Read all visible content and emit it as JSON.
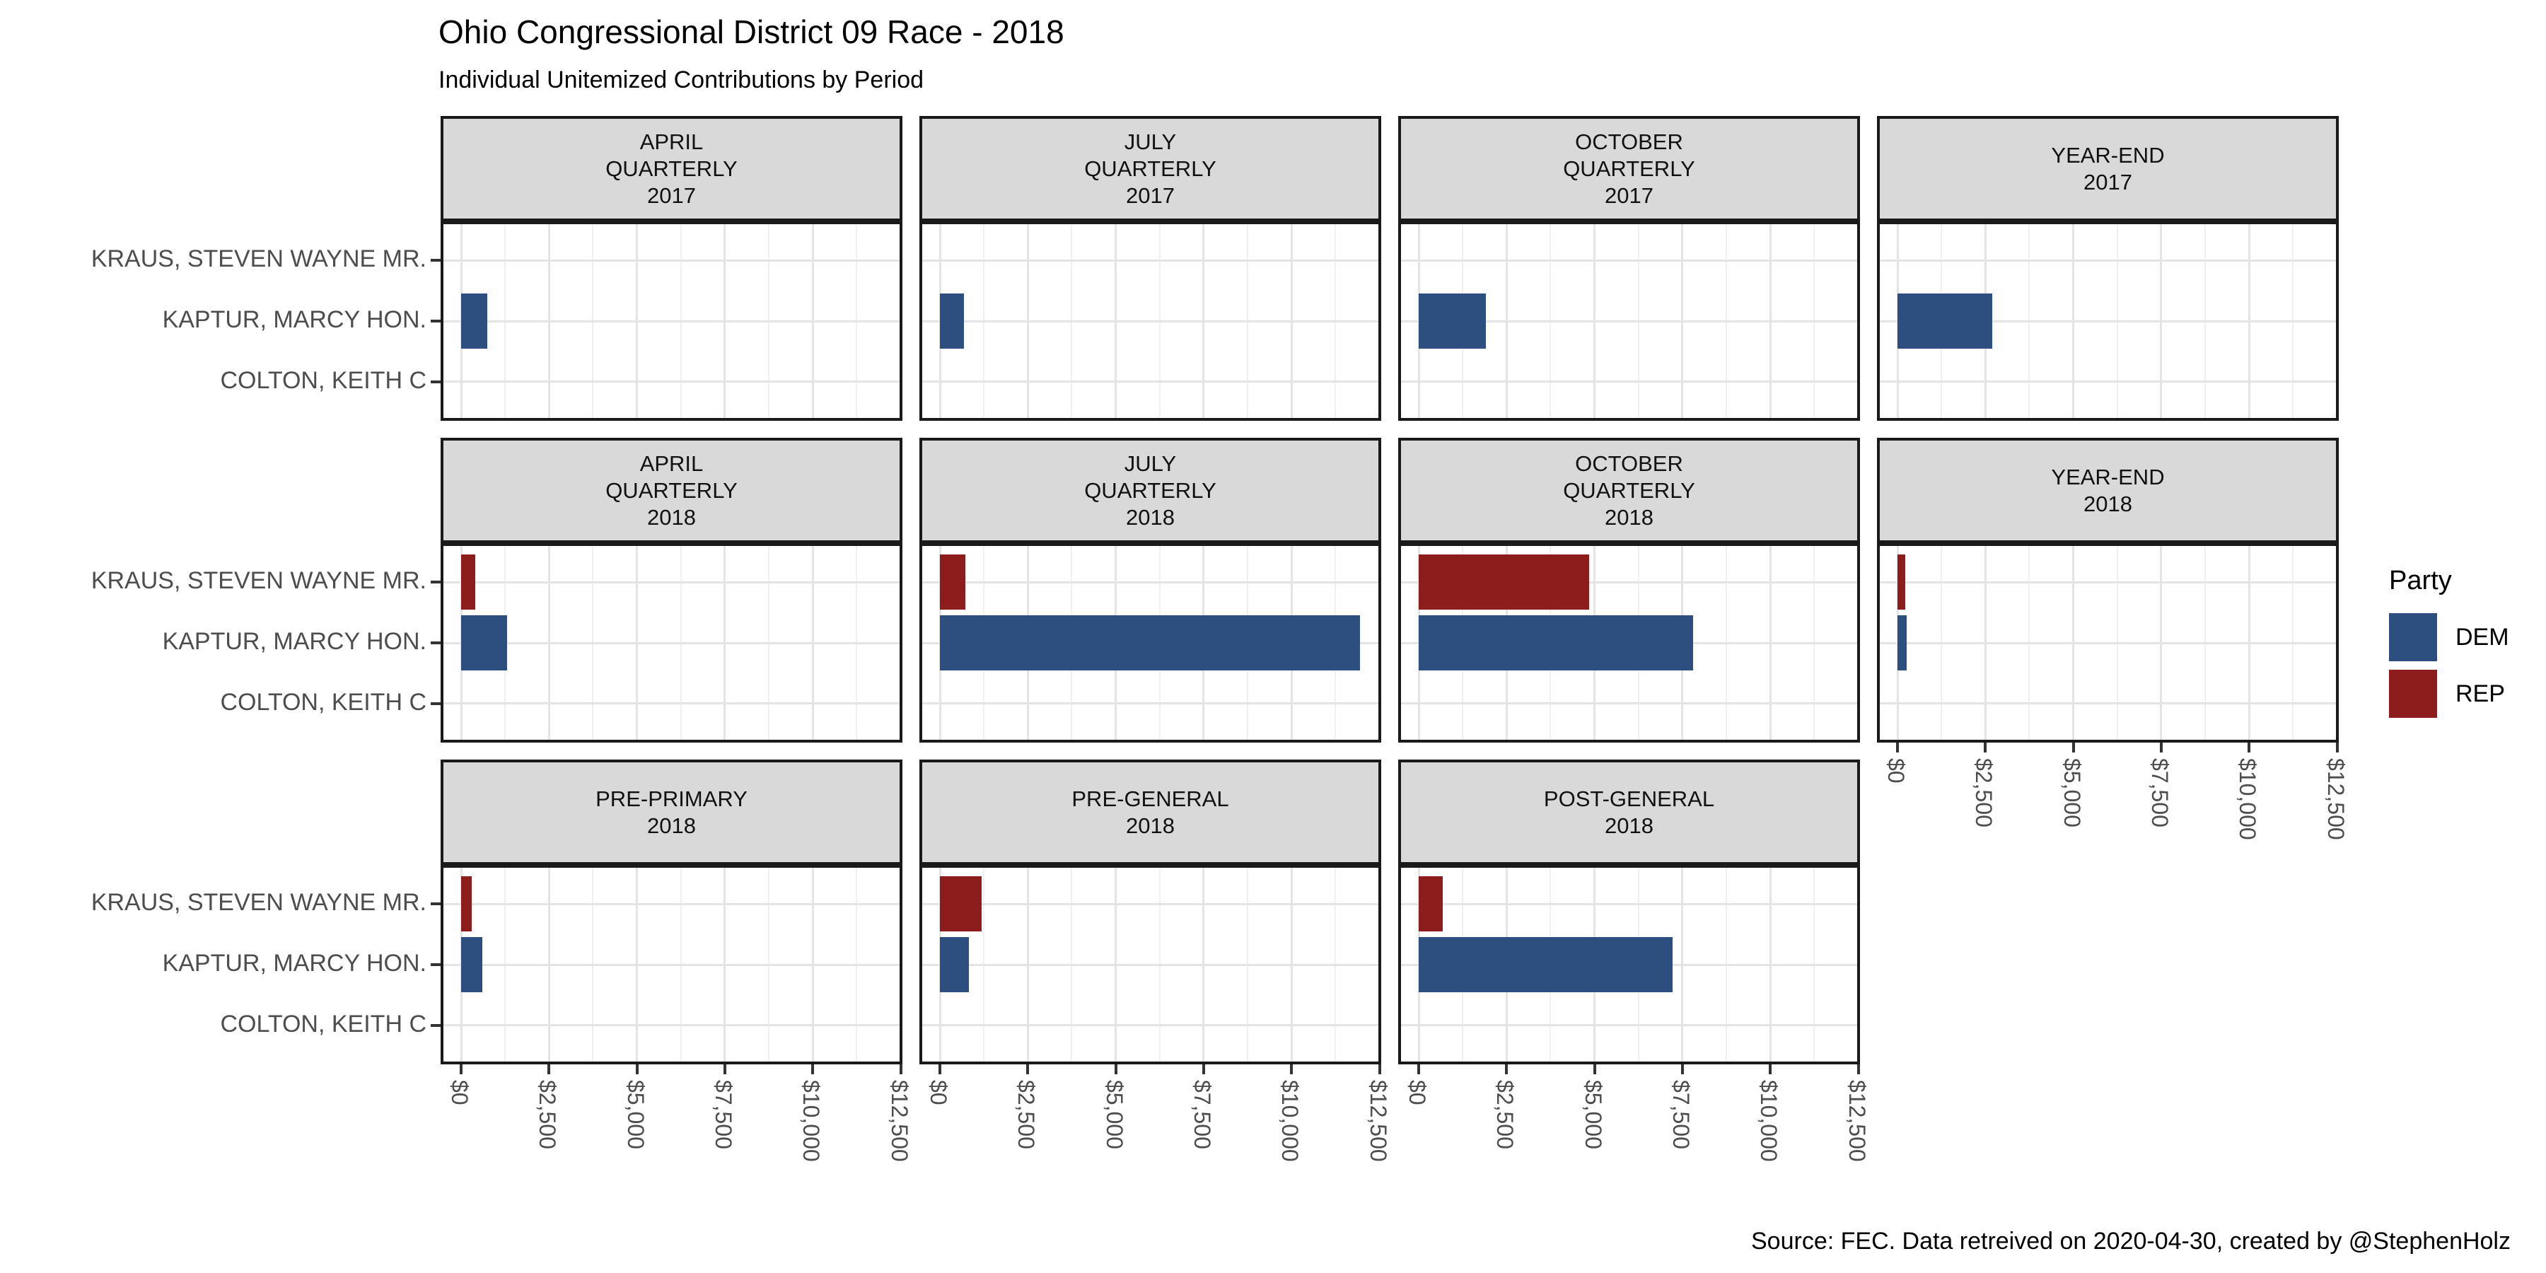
{
  "title": "Ohio Congressional District 09 Race - 2018",
  "subtitle": "Individual Unitemized Contributions by Period",
  "source_note": "Source: FEC. Data retreived on 2020-04-30, created by @StephenHolz",
  "legend": {
    "title": "Party",
    "entries": [
      {
        "label": "DEM",
        "color": "#2d4f80"
      },
      {
        "label": "REP",
        "color": "#8d1c1c"
      }
    ]
  },
  "chart_data": {
    "type": "bar",
    "orientation": "horizontal",
    "title": "Ohio Congressional District 09 Race - 2018",
    "subtitle": "Individual Unitemized Contributions by Period",
    "xlim": [
      0,
      12500
    ],
    "x_ticks": [
      0,
      2500,
      5000,
      7500,
      10000,
      12500
    ],
    "x_tick_labels": [
      "$0",
      "$2,500",
      "$5,000",
      "$7,500",
      "$10,000",
      "$12,500"
    ],
    "x_minor_step": 1250,
    "grid": true,
    "legend_position": "right",
    "party_colors": {
      "DEM": "#2d4f80",
      "REP": "#8d1c1c"
    },
    "candidates": [
      {
        "name": "KRAUS, STEVEN WAYNE MR.",
        "party": "REP"
      },
      {
        "name": "KAPTUR, MARCY HON.",
        "party": "DEM"
      },
      {
        "name": "COLTON, KEITH C",
        "party": null
      }
    ],
    "facets": [
      {
        "title_lines": [
          "APRIL",
          "QUARTERLY",
          "2017"
        ],
        "values": [
          0,
          750,
          0
        ],
        "x_axis": false
      },
      {
        "title_lines": [
          "JULY",
          "QUARTERLY",
          "2017"
        ],
        "values": [
          0,
          675,
          0
        ],
        "x_axis": false
      },
      {
        "title_lines": [
          "OCTOBER",
          "QUARTERLY",
          "2017"
        ],
        "values": [
          0,
          1900,
          0
        ],
        "x_axis": false
      },
      {
        "title_lines": [
          "YEAR-END",
          "2017"
        ],
        "values": [
          0,
          2700,
          0
        ],
        "x_axis": false
      },
      {
        "title_lines": [
          "APRIL",
          "QUARTERLY",
          "2018"
        ],
        "values": [
          400,
          1310,
          0
        ],
        "x_axis": false
      },
      {
        "title_lines": [
          "JULY",
          "QUARTERLY",
          "2018"
        ],
        "values": [
          715,
          11950,
          0
        ],
        "x_axis": false
      },
      {
        "title_lines": [
          "OCTOBER",
          "QUARTERLY",
          "2018"
        ],
        "values": [
          4855,
          7810,
          0
        ],
        "x_axis": false
      },
      {
        "title_lines": [
          "YEAR-END",
          "2018"
        ],
        "values": [
          215,
          265,
          0
        ],
        "x_axis": true
      },
      {
        "title_lines": [
          "PRE-PRIMARY",
          "2018"
        ],
        "values": [
          310,
          600,
          0
        ],
        "x_axis": true
      },
      {
        "title_lines": [
          "PRE-GENERAL",
          "2018"
        ],
        "values": [
          1185,
          825,
          0
        ],
        "x_axis": true
      },
      {
        "title_lines": [
          "POST-GENERAL",
          "2018"
        ],
        "values": [
          690,
          7210,
          0
        ],
        "x_axis": true
      }
    ]
  }
}
